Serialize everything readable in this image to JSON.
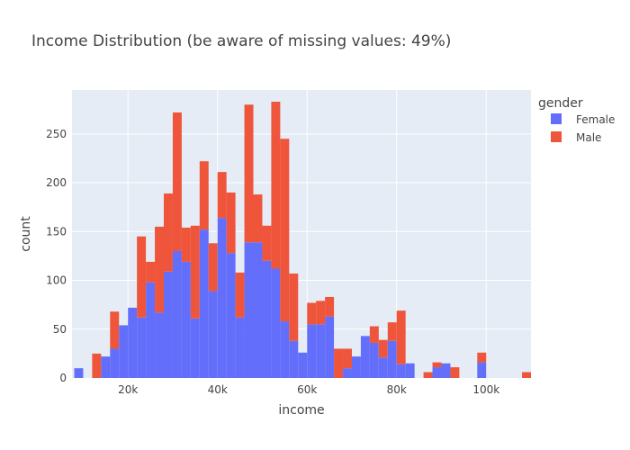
{
  "chart_data": {
    "type": "bar",
    "barmode": "stacked histogram",
    "title": "Income Distribution (be aware of missing values: 49%)",
    "xlabel": "income",
    "ylabel": "count",
    "xlim": [
      7500,
      110000
    ],
    "ylim": [
      0,
      295
    ],
    "bin_width": 2000,
    "x": [
      8000,
      10000,
      12000,
      14000,
      16000,
      18000,
      20000,
      22000,
      24000,
      26000,
      28000,
      30000,
      32000,
      34000,
      36000,
      38000,
      40000,
      42000,
      44000,
      46000,
      48000,
      50000,
      52000,
      54000,
      56000,
      58000,
      60000,
      62000,
      64000,
      66000,
      68000,
      70000,
      72000,
      74000,
      76000,
      78000,
      80000,
      82000,
      84000,
      86000,
      88000,
      90000,
      92000,
      94000,
      96000,
      98000,
      100000,
      102000,
      104000,
      106000,
      108000
    ],
    "xticks": [
      20000,
      40000,
      60000,
      80000,
      100000
    ],
    "xtick_labels": [
      "20k",
      "40k",
      "60k",
      "80k",
      "100k"
    ],
    "yticks": [
      0,
      50,
      100,
      150,
      200,
      250
    ],
    "ytick_labels": [
      "0",
      "50",
      "100",
      "150",
      "200",
      "250"
    ],
    "grid": true,
    "series": [
      {
        "name": "Female",
        "color": "#636efa",
        "values": [
          10,
          0,
          0,
          22,
          30,
          54,
          72,
          62,
          98,
          67,
          109,
          130,
          119,
          61,
          152,
          89,
          164,
          128,
          62,
          139,
          139,
          120,
          112,
          58,
          38,
          26,
          55,
          55,
          63,
          0,
          10,
          22,
          43,
          36,
          21,
          38,
          14,
          15,
          0,
          0,
          11,
          15,
          0,
          0,
          0,
          16,
          0,
          0,
          0,
          0,
          0
        ]
      },
      {
        "name": "Male",
        "color": "#ef553b",
        "values": [
          0,
          0,
          25,
          0,
          38,
          0,
          0,
          83,
          21,
          88,
          80,
          142,
          35,
          95,
          70,
          49,
          47,
          62,
          46,
          141,
          49,
          36,
          171,
          187,
          69,
          0,
          22,
          24,
          20,
          30,
          20,
          0,
          0,
          17,
          18,
          19,
          55,
          0,
          0,
          6,
          5,
          0,
          11,
          0,
          0,
          10,
          0,
          0,
          0,
          0,
          6
        ]
      }
    ],
    "legend": {
      "title": "gender",
      "placement": "top-right outside"
    },
    "colors": {
      "plot_bg": "#e5ecf6",
      "grid": "#ffffff",
      "text": "#444444"
    }
  }
}
